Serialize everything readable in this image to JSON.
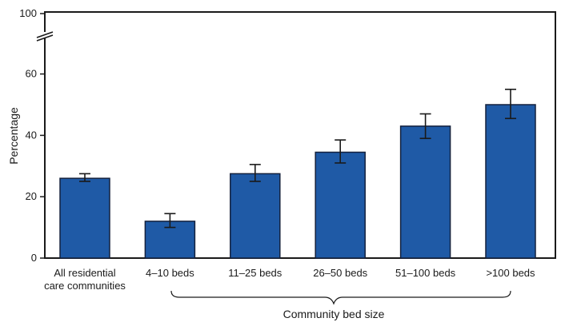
{
  "chart_data": {
    "type": "bar",
    "title": "",
    "xlabel": "Community bed size",
    "ylabel": "Percentage",
    "axis_break": true,
    "yticks": [
      0,
      20,
      40,
      60,
      100
    ],
    "categories": [
      [
        "All residential",
        "care communities"
      ],
      [
        "4–10 beds"
      ],
      [
        "11–25 beds"
      ],
      [
        "26–50 beds"
      ],
      [
        "51–100 beds"
      ],
      [
        ">100 beds"
      ]
    ],
    "values": [
      26,
      12,
      27.5,
      34.5,
      43,
      50
    ],
    "error_low": [
      25,
      10,
      25,
      31,
      39,
      45.5
    ],
    "error_high": [
      27.5,
      14.5,
      30.5,
      38.5,
      47,
      55
    ],
    "bar_color": "#1f5aa6",
    "bar_edge_color": "#14213d"
  }
}
